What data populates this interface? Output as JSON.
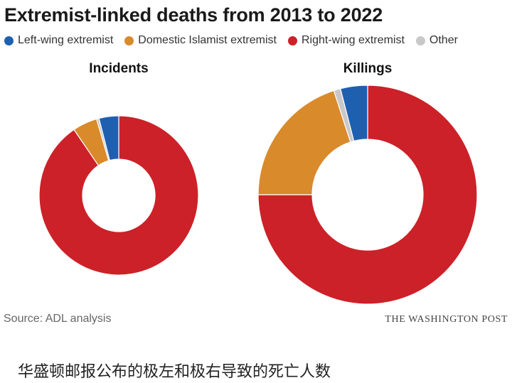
{
  "title": "Extremist-linked deaths from 2013 to 2022",
  "source": "Source: ADL analysis",
  "publisher": "THE WASHINGTON POST",
  "caption": "华盛顿邮报公布的极左和极右导致的死亡人数",
  "chart_data": {
    "type": "pie",
    "legend_position": "top-left",
    "legend": [
      {
        "name": "Left-wing extremist",
        "color": "#1f5fb0"
      },
      {
        "name": "Domestic Islamist extremist",
        "color": "#d98a2b"
      },
      {
        "name": "Right-wing extremist",
        "color": "#cc2128"
      },
      {
        "name": "Other",
        "color": "#c8c8c8"
      }
    ],
    "charts": [
      {
        "title": "Incidents",
        "series": [
          {
            "name": "Left-wing extremist",
            "value": 4
          },
          {
            "name": "Domestic Islamist extremist",
            "value": 5
          },
          {
            "name": "Right-wing extremist",
            "value": 90.5
          },
          {
            "name": "Other",
            "value": 0.5
          }
        ]
      },
      {
        "title": "Killings",
        "series": [
          {
            "name": "Left-wing extremist",
            "value": 4
          },
          {
            "name": "Domestic Islamist extremist",
            "value": 20
          },
          {
            "name": "Right-wing extremist",
            "value": 75
          },
          {
            "name": "Other",
            "value": 1
          }
        ]
      }
    ]
  }
}
